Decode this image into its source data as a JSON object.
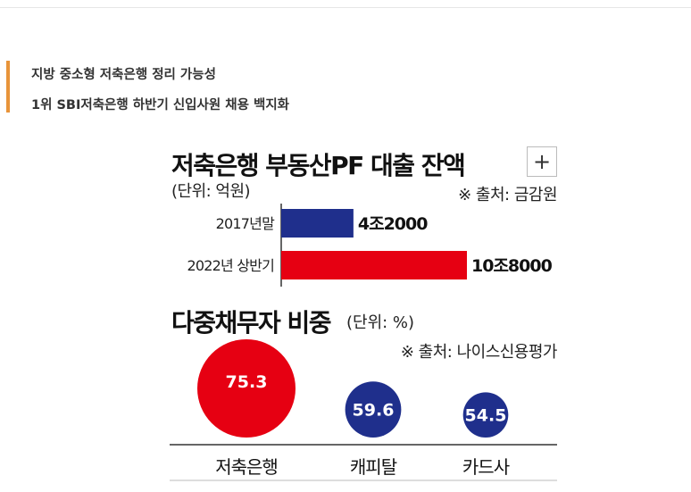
{
  "summary": {
    "line1": "지방 중소형 저축은행 정리 가능성",
    "line2": "1위 SBI저축은행 하반기 신입사원 채용 백지화"
  },
  "expand_button": "+",
  "colors": {
    "accent": "#e8943a",
    "red": "#e60012",
    "navy": "#1f2f8c"
  },
  "chart_data": [
    {
      "type": "bar",
      "orientation": "horizontal",
      "title": "저축은행 부동산PF 대출 잔액",
      "unit_label": "(단위: 억원)",
      "source": "※ 출처: 금감원",
      "categories": [
        "2017년말",
        "2022년 상반기"
      ],
      "values": [
        42000,
        108000
      ],
      "data_labels": [
        "4조2000",
        "10조8000"
      ],
      "colors": [
        "#1f2f8c",
        "#e60012"
      ],
      "xlim": [
        0,
        108000
      ]
    },
    {
      "type": "bubble",
      "title": "다중채무자 비중",
      "unit_label": "(단위: %)",
      "source": "※ 출처: 나이스신용평가",
      "categories": [
        "저축은행",
        "캐피탈",
        "카드사"
      ],
      "values": [
        75.3,
        59.6,
        54.5
      ],
      "data_labels": [
        "75.3",
        "59.6",
        "54.5"
      ],
      "colors": [
        "#e60012",
        "#1f2f8c",
        "#1f2f8c"
      ]
    }
  ]
}
